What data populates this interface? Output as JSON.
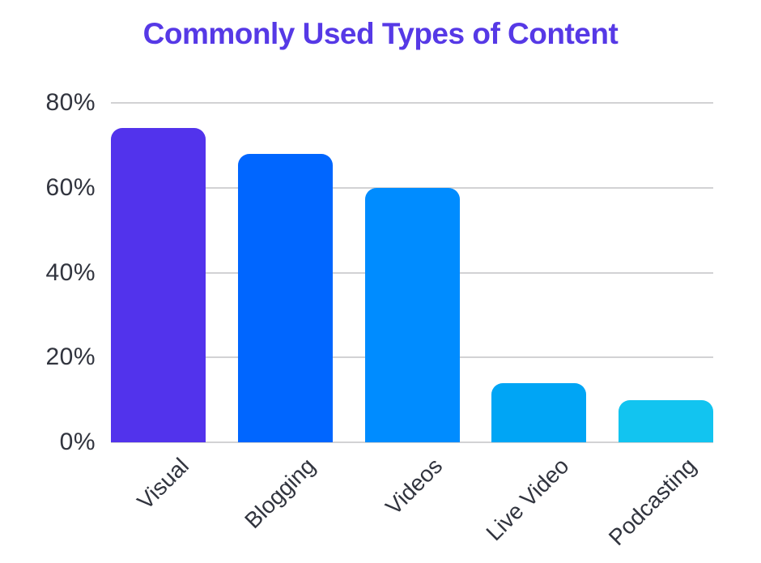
{
  "title": "Commonly Used Types of Content",
  "colors": {
    "background": "#FFFFFF",
    "title_text": "#5639E6",
    "axis_text": "#31343E",
    "gridline": "#D2D2D4",
    "bar_colors": [
      "#5233EC",
      "#0066FF",
      "#008CFF",
      "#00A5F5",
      "#12C4F0"
    ]
  },
  "chart_data": {
    "type": "bar",
    "title": "Commonly Used Types of Content",
    "categories": [
      "Visual",
      "Blogging",
      "Videos",
      "Live Video",
      "Podcasting"
    ],
    "values": [
      74,
      68,
      60,
      14,
      10
    ],
    "unit": "%",
    "xlabel": "",
    "ylabel": "",
    "ylim": [
      0,
      80
    ],
    "ytick_values": [
      0,
      20,
      40,
      60,
      80
    ],
    "ytick_labels": [
      "0%",
      "20%",
      "40%",
      "60%",
      "80%"
    ],
    "grid": "horizontal",
    "legend": "none",
    "bar_texture": [
      "solid",
      "solid",
      "solid",
      "dotted-light",
      "dotted"
    ]
  }
}
